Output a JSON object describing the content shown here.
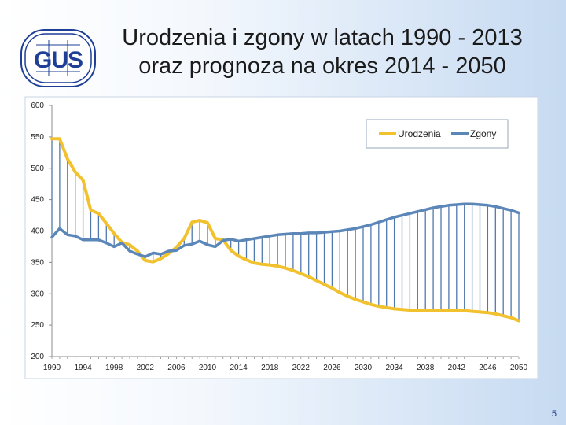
{
  "title": {
    "line1": "Urodzenia i zgony w latach 1990 - 2013",
    "line2": "oraz prognoza na okres 2014 - 2050"
  },
  "logo": {
    "text": "GUS"
  },
  "page_number": "5",
  "colors": {
    "births": "#f2c12e",
    "deaths": "#5b86b8",
    "bars": "#4f79ad",
    "plot_bg": "#ffffff",
    "axis": "#8c8c8c"
  },
  "chart_data": {
    "type": "line",
    "title": "",
    "xlabel": "",
    "ylabel": "",
    "ylim": [
      200,
      600
    ],
    "yticks": [
      200,
      250,
      300,
      350,
      400,
      450,
      500,
      550,
      600
    ],
    "xlim": [
      1990,
      2050
    ],
    "xticks": [
      1990,
      1994,
      1998,
      2002,
      2006,
      2010,
      2014,
      2018,
      2022,
      2026,
      2030,
      2034,
      2038,
      2042,
      2046,
      2050
    ],
    "grid": false,
    "legend": "top-right",
    "x": [
      1990,
      1991,
      1992,
      1993,
      1994,
      1995,
      1996,
      1997,
      1998,
      1999,
      2000,
      2001,
      2002,
      2003,
      2004,
      2005,
      2006,
      2007,
      2008,
      2009,
      2010,
      2011,
      2012,
      2013,
      2014,
      2015,
      2016,
      2017,
      2018,
      2019,
      2020,
      2021,
      2022,
      2023,
      2024,
      2025,
      2026,
      2027,
      2028,
      2029,
      2030,
      2031,
      2032,
      2033,
      2034,
      2035,
      2036,
      2037,
      2038,
      2039,
      2040,
      2041,
      2042,
      2043,
      2044,
      2045,
      2046,
      2047,
      2048,
      2049,
      2050
    ],
    "series": [
      {
        "name": "Urodzenia",
        "color": "#f2c12e",
        "values": [
          547,
          547,
          515,
          494,
          481,
          433,
          428,
          412,
          396,
          382,
          378,
          368,
          353,
          351,
          356,
          364,
          374,
          388,
          414,
          417,
          413,
          388,
          386,
          369,
          360,
          354,
          349,
          347,
          346,
          344,
          341,
          337,
          332,
          327,
          321,
          315,
          309,
          302,
          296,
          291,
          287,
          283,
          280,
          278,
          276,
          275,
          274,
          274,
          274,
          274,
          274,
          274,
          274,
          273,
          272,
          271,
          270,
          268,
          265,
          262,
          257
        ]
      },
      {
        "name": "Zgony",
        "color": "#5b86b8",
        "values": [
          390,
          404,
          394,
          392,
          386,
          386,
          386,
          381,
          375,
          381,
          368,
          363,
          359,
          365,
          363,
          368,
          369,
          377,
          379,
          384,
          378,
          375,
          385,
          387,
          384,
          386,
          388,
          390,
          392,
          394,
          395,
          396,
          396,
          397,
          397,
          398,
          399,
          400,
          402,
          404,
          407,
          410,
          414,
          418,
          422,
          425,
          428,
          431,
          434,
          437,
          439,
          441,
          442,
          443,
          443,
          442,
          441,
          439,
          436,
          433,
          429
        ]
      }
    ]
  }
}
